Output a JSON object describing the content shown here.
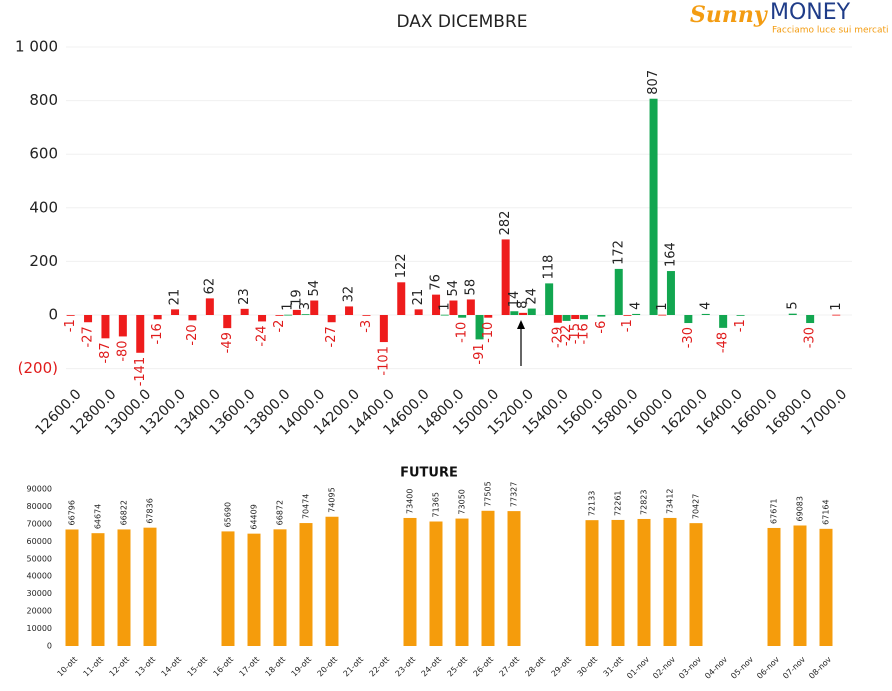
{
  "logo": {
    "brand": "Sunny",
    "brand2": "MONEY",
    "tagline": "Facciamo luce sui mercati"
  },
  "chart_data": [
    {
      "type": "bar",
      "title": "DAX DICEMBRE",
      "categories": [
        "12600.0",
        null,
        "12800.0",
        null,
        "13000.0",
        null,
        "13200.0",
        null,
        "13400.0",
        null,
        "13600.0",
        null,
        "13800.0",
        null,
        "14000.0",
        null,
        "14200.0",
        null,
        "14400.0",
        null,
        "14600.0",
        null,
        "14800.0",
        null,
        "15000.0",
        null,
        "15200.0",
        null,
        "15400.0",
        null,
        "15600.0",
        null,
        "15800.0",
        null,
        "16000.0",
        null,
        "16200.0",
        null,
        "16400.0",
        null,
        "16600.0",
        null,
        "16800.0",
        null,
        "17000.0"
      ],
      "series": [
        {
          "color": "#ee1c1c",
          "values": [
            -1,
            -27,
            -87,
            -80,
            -141,
            -16,
            21,
            -20,
            62,
            -49,
            23,
            -24,
            -2,
            19,
            54,
            -27,
            32,
            -3,
            -101,
            122,
            21,
            76,
            54,
            58,
            -10,
            282,
            8,
            null,
            -29,
            -15,
            null,
            null,
            -1,
            null,
            1,
            null,
            null,
            null,
            null,
            null,
            null,
            null,
            null,
            null,
            1
          ]
        },
        {
          "color": "#12a650",
          "values": [
            null,
            null,
            null,
            null,
            null,
            null,
            null,
            null,
            null,
            null,
            null,
            null,
            1,
            3,
            null,
            null,
            null,
            null,
            null,
            null,
            null,
            1,
            -10,
            -91,
            null,
            14,
            24,
            118,
            -22,
            -16,
            -6,
            172,
            4,
            807,
            164,
            -30,
            4,
            -48,
            -1,
            null,
            null,
            5,
            -30,
            null,
            null
          ]
        }
      ],
      "ylim": [
        -200,
        1000
      ],
      "yticks": [
        {
          "value": -200,
          "label": "(200)"
        },
        0,
        200,
        400,
        600,
        800,
        {
          "value": 1000,
          "label": "1 000"
        }
      ],
      "grid": true
    },
    {
      "type": "bar",
      "title": "FUTURE",
      "categories": [
        "10-ott",
        "11-ott",
        "12-ott",
        "13-ott",
        "14-ott",
        "15-ott",
        "16-ott",
        "17-ott",
        "18-ott",
        "19-ott",
        "20-ott",
        "21-ott",
        "22-ott",
        "23-ott",
        "24-ott",
        "25-ott",
        "26-ott",
        "27-ott",
        "28-ott",
        "29-ott",
        "30-ott",
        "31-ott",
        "01-nov",
        "02-nov",
        "03-nov",
        "04-nov",
        "05-nov",
        "06-nov",
        "07-nov",
        "08-nov"
      ],
      "series": [
        {
          "color": "#f59c0c",
          "values": [
            66796,
            64674,
            66822,
            67836,
            null,
            null,
            65690,
            64409,
            66872,
            70474,
            74095,
            null,
            null,
            73400,
            71365,
            73050,
            77505,
            77327,
            null,
            null,
            72133,
            72261,
            72823,
            73412,
            70427,
            null,
            null,
            67671,
            69083,
            67164
          ]
        }
      ],
      "ylim": [
        0,
        90000
      ],
      "yticks": [
        0,
        10000,
        20000,
        30000,
        40000,
        50000,
        60000,
        70000,
        80000,
        90000
      ],
      "grid": false
    }
  ]
}
